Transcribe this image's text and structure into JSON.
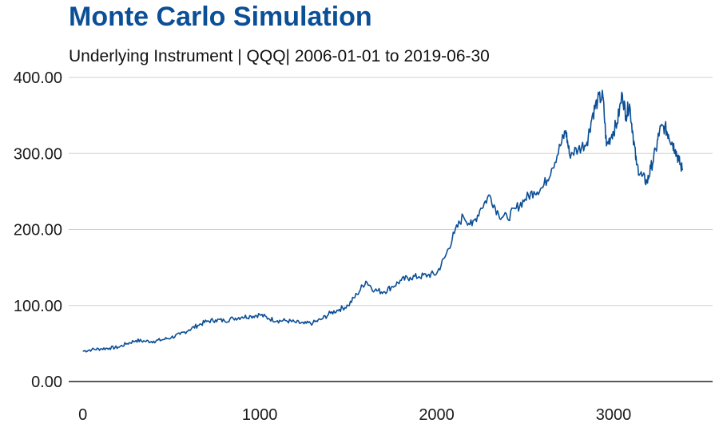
{
  "chart_data": {
    "type": "line",
    "title": "Monte Carlo Simulation",
    "subtitle": "Underlying Instrument | QQQ| 2006-01-01 to 2019-06-30",
    "xlabel": "",
    "ylabel": "",
    "xlim": [
      -80,
      3560
    ],
    "ylim": [
      0,
      400
    ],
    "x_ticks": [
      0,
      1000,
      2000,
      3000
    ],
    "x_tick_labels": [
      "0",
      "1000",
      "2000",
      "3000"
    ],
    "y_ticks": [
      0,
      100,
      200,
      300,
      400
    ],
    "y_tick_labels": [
      "0.00",
      "100.00",
      "200.00",
      "300.00",
      "400.00"
    ],
    "grid": "horizontal",
    "legend": "none",
    "series": [
      {
        "color": "#0b4f96",
        "x": [
          0,
          50,
          100,
          150,
          200,
          250,
          300,
          350,
          400,
          450,
          500,
          550,
          600,
          650,
          700,
          750,
          800,
          850,
          900,
          950,
          1000,
          1050,
          1100,
          1150,
          1200,
          1250,
          1300,
          1350,
          1400,
          1450,
          1500,
          1550,
          1600,
          1650,
          1700,
          1750,
          1800,
          1850,
          1900,
          1950,
          2000,
          2050,
          2100,
          2150,
          2200,
          2250,
          2300,
          2350,
          2400,
          2450,
          2500,
          2550,
          2600,
          2650,
          2700,
          2730,
          2750,
          2800,
          2850,
          2880,
          2910,
          2940,
          2960,
          2990,
          3020,
          3050,
          3070,
          3090,
          3110,
          3130,
          3160,
          3190,
          3210,
          3240,
          3260,
          3290,
          3310,
          3330,
          3350,
          3370,
          3390
        ],
        "values": [
          40,
          42,
          43,
          44,
          45,
          50,
          54,
          53,
          53,
          55,
          58,
          62,
          68,
          74,
          79,
          81,
          80,
          83,
          85,
          86,
          88,
          83,
          80,
          80,
          78,
          76,
          77,
          82,
          90,
          95,
          100,
          115,
          132,
          120,
          118,
          125,
          133,
          137,
          138,
          140,
          142,
          165,
          195,
          218,
          205,
          228,
          245,
          220,
          215,
          228,
          240,
          250,
          255,
          280,
          310,
          330,
          300,
          305,
          315,
          350,
          370,
          375,
          310,
          325,
          340,
          378,
          350,
          365,
          325,
          285,
          270,
          262,
          280,
          305,
          330,
          335,
          325,
          315,
          305,
          290,
          278
        ]
      }
    ]
  }
}
